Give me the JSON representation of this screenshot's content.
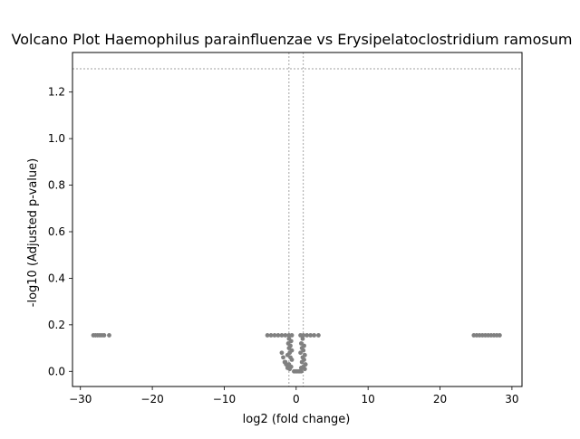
{
  "chart_data": {
    "type": "scatter",
    "title": "Volcano Plot Haemophilus parainfluenzae vs Erysipelatoclostridium ramosum",
    "xlabel": "log2 (fold change)",
    "ylabel": "-log10 (Adjusted p-value)",
    "xlim": [
      -31.1,
      31.4
    ],
    "ylim": [
      -0.065,
      1.37
    ],
    "xticks": [
      -30,
      -20,
      -10,
      0,
      10,
      20,
      30
    ],
    "yticks": [
      0.0,
      0.2,
      0.4,
      0.6,
      0.8,
      1.0,
      1.2
    ],
    "xtick_labels": [
      "−30",
      "−20",
      "−10",
      "0",
      "10",
      "20",
      "30"
    ],
    "ytick_labels": [
      "0.0",
      "0.2",
      "0.4",
      "0.6",
      "0.8",
      "1.0",
      "1.2"
    ],
    "threshold_lines": {
      "y": 1.3,
      "x": [
        -1,
        1
      ]
    },
    "grid": false,
    "point_color": "#808080",
    "line_color": "#808080",
    "series": [
      {
        "points": [
          [
            -28.2,
            0.155
          ],
          [
            -27.9,
            0.155
          ],
          [
            -27.6,
            0.155
          ],
          [
            -27.3,
            0.155
          ],
          [
            -27.0,
            0.155
          ],
          [
            -26.7,
            0.155
          ],
          [
            -26.0,
            0.155
          ],
          [
            -4.0,
            0.155
          ],
          [
            -3.5,
            0.155
          ],
          [
            -3.0,
            0.155
          ],
          [
            -2.5,
            0.155
          ],
          [
            -2.0,
            0.155
          ],
          [
            -1.5,
            0.155
          ],
          [
            -1.0,
            0.155
          ],
          [
            -0.6,
            0.155
          ],
          [
            0.6,
            0.155
          ],
          [
            1.0,
            0.155
          ],
          [
            1.5,
            0.155
          ],
          [
            2.0,
            0.155
          ],
          [
            2.5,
            0.155
          ],
          [
            3.1,
            0.155
          ],
          [
            -1.0,
            0.14
          ],
          [
            -0.7,
            0.13
          ],
          [
            -1.1,
            0.12
          ],
          [
            -0.8,
            0.11
          ],
          [
            -1.0,
            0.1
          ],
          [
            -0.6,
            0.09
          ],
          [
            -0.9,
            0.08
          ],
          [
            -1.2,
            0.07
          ],
          [
            -0.8,
            0.06
          ],
          [
            -0.6,
            0.05
          ],
          [
            -1.5,
            0.04
          ],
          [
            -1.0,
            0.03
          ],
          [
            -0.7,
            0.02
          ],
          [
            -1.2,
            0.015
          ],
          [
            -0.9,
            0.01
          ],
          [
            -2.0,
            0.08
          ],
          [
            -1.8,
            0.06
          ],
          [
            -1.6,
            0.04
          ],
          [
            -1.4,
            0.03
          ],
          [
            0.9,
            0.14
          ],
          [
            0.7,
            0.12
          ],
          [
            1.1,
            0.11
          ],
          [
            0.8,
            0.1
          ],
          [
            1.0,
            0.09
          ],
          [
            0.6,
            0.08
          ],
          [
            1.2,
            0.07
          ],
          [
            0.9,
            0.06
          ],
          [
            1.1,
            0.05
          ],
          [
            0.8,
            0.04
          ],
          [
            1.3,
            0.03
          ],
          [
            1.0,
            0.02
          ],
          [
            0.7,
            0.015
          ],
          [
            1.2,
            0.01
          ],
          [
            -0.3,
            0.0
          ],
          [
            -0.1,
            0.0
          ],
          [
            0.1,
            0.0
          ],
          [
            0.3,
            0.0
          ],
          [
            0.5,
            0.0
          ],
          [
            0.7,
            0.0
          ],
          [
            24.7,
            0.155
          ],
          [
            25.1,
            0.155
          ],
          [
            25.5,
            0.155
          ],
          [
            25.9,
            0.155
          ],
          [
            26.3,
            0.155
          ],
          [
            26.7,
            0.155
          ],
          [
            27.1,
            0.155
          ],
          [
            27.5,
            0.155
          ],
          [
            27.9,
            0.155
          ],
          [
            28.3,
            0.155
          ]
        ]
      }
    ]
  }
}
